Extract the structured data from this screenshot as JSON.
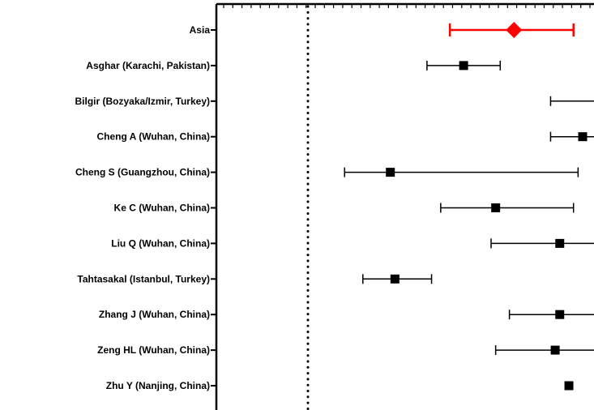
{
  "chart_data": {
    "type": "forest",
    "reference_line": 1,
    "colors": {
      "summary": "#ff0000",
      "study": "#000000",
      "axis": "#000000"
    },
    "rows": [
      {
        "label": "Asia",
        "estimate": 3.25,
        "lower": 2.55,
        "upper": 3.9,
        "kind": "summary",
        "marker": "diamond"
      },
      {
        "label": "Asghar (Karachi, Pakistan)",
        "estimate": 2.7,
        "lower": 2.3,
        "upper": 3.1,
        "kind": "study",
        "marker": "square"
      },
      {
        "label": "Bilgir (Bozyaka/Izmir, Turkey)",
        "estimate": 4.25,
        "lower": 3.65,
        "upper": 4.85,
        "kind": "study",
        "marker": "square"
      },
      {
        "label": "Cheng A (Wuhan, China)",
        "estimate": 4.0,
        "lower": 3.65,
        "upper": 4.35,
        "kind": "study",
        "marker": "square"
      },
      {
        "label": "Cheng S (Guangzhou, China)",
        "estimate": 1.9,
        "lower": 1.4,
        "upper": 3.95,
        "kind": "study",
        "marker": "square"
      },
      {
        "label": "Ke C (Wuhan, China)",
        "estimate": 3.05,
        "lower": 2.45,
        "upper": 3.9,
        "kind": "study",
        "marker": "square"
      },
      {
        "label": "Liu Q (Wuhan, China)",
        "estimate": 3.75,
        "lower": 3.0,
        "upper": 4.5,
        "kind": "study",
        "marker": "square"
      },
      {
        "label": "Tahtasakal (Istanbul, Turkey)",
        "estimate": 1.95,
        "lower": 1.6,
        "upper": 2.35,
        "kind": "study",
        "marker": "square"
      },
      {
        "label": "Zhang J (Wuhan, China)",
        "estimate": 3.75,
        "lower": 3.2,
        "upper": 4.35,
        "kind": "study",
        "marker": "square"
      },
      {
        "label": "Zeng HL (Wuhan, China)",
        "estimate": 3.7,
        "lower": 3.05,
        "upper": 4.4,
        "kind": "study",
        "marker": "square"
      },
      {
        "label": "Zhu Y (Nanjing, China)",
        "estimate": 3.85,
        "lower": null,
        "upper": null,
        "kind": "study",
        "marker": "square"
      }
    ]
  }
}
